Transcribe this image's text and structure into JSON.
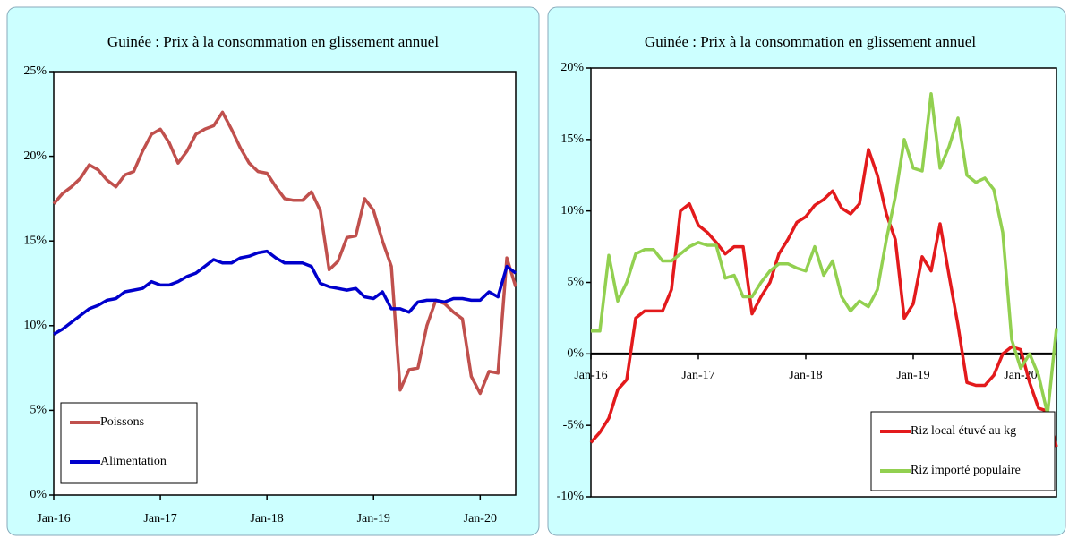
{
  "chart_data": [
    {
      "type": "line",
      "title": "Guinée : Prix à la consommation en glissement annuel",
      "categories": [
        "Jan-16",
        null,
        null,
        null,
        null,
        null,
        null,
        null,
        null,
        null,
        null,
        null,
        "Jan-17",
        null,
        null,
        null,
        null,
        null,
        null,
        null,
        null,
        null,
        null,
        null,
        "Jan-18",
        null,
        null,
        null,
        null,
        null,
        null,
        null,
        null,
        null,
        null,
        null,
        "Jan-19",
        null,
        null,
        null,
        null,
        null,
        null,
        null,
        null,
        null,
        null,
        null,
        "Jan-20",
        null,
        null,
        null,
        null
      ],
      "ylim": [
        0,
        25
      ],
      "yticks": [
        {
          "value": 0,
          "label": "0%"
        },
        {
          "value": 5,
          "label": "5%"
        },
        {
          "value": 10,
          "label": "10%"
        },
        {
          "value": 15,
          "label": "15%"
        },
        {
          "value": 20,
          "label": "20%"
        },
        {
          "value": 25,
          "label": "25%"
        }
      ],
      "legend": "lower left",
      "series": [
        {
          "name": "Poissons",
          "color": "#c0504d",
          "values": [
            17.2,
            17.8,
            18.2,
            18.7,
            19.5,
            19.2,
            18.6,
            18.2,
            18.9,
            19.1,
            20.3,
            21.3,
            21.6,
            20.8,
            19.6,
            20.3,
            21.3,
            21.6,
            21.8,
            22.6,
            21.6,
            20.5,
            19.6,
            19.1,
            19.0,
            18.2,
            17.5,
            17.4,
            17.4,
            17.9,
            16.8,
            13.3,
            13.8,
            15.2,
            15.3,
            17.5,
            16.8,
            15.0,
            13.5,
            6.2,
            7.4,
            7.5,
            10.0,
            11.5,
            11.3,
            10.8,
            10.4,
            7.0,
            6.0,
            7.3,
            7.2,
            14.0,
            12.3
          ]
        },
        {
          "name": "Alimentation",
          "color": "#0000cc",
          "values": [
            9.5,
            9.8,
            10.2,
            10.6,
            11.0,
            11.2,
            11.5,
            11.6,
            12.0,
            12.1,
            12.2,
            12.6,
            12.4,
            12.4,
            12.6,
            12.9,
            13.1,
            13.5,
            13.9,
            13.7,
            13.7,
            14.0,
            14.1,
            14.3,
            14.4,
            14.0,
            13.7,
            13.7,
            13.7,
            13.5,
            12.5,
            12.3,
            12.2,
            12.1,
            12.2,
            11.7,
            11.6,
            12.0,
            11.0,
            11.0,
            10.8,
            11.4,
            11.5,
            11.5,
            11.4,
            11.6,
            11.6,
            11.5,
            11.5,
            12.0,
            11.7,
            13.5,
            13.1
          ]
        }
      ]
    },
    {
      "type": "line",
      "title": "Guinée : Prix à la consommation en glissement annuel",
      "categories": [
        "Jan-16",
        null,
        null,
        null,
        null,
        null,
        null,
        null,
        null,
        null,
        null,
        null,
        "Jan-17",
        null,
        null,
        null,
        null,
        null,
        null,
        null,
        null,
        null,
        null,
        null,
        "Jan-18",
        null,
        null,
        null,
        null,
        null,
        null,
        null,
        null,
        null,
        null,
        null,
        "Jan-19",
        null,
        null,
        null,
        null,
        null,
        null,
        null,
        null,
        null,
        null,
        null,
        "Jan-20",
        null,
        null,
        null,
        null
      ],
      "ylim": [
        -10,
        20
      ],
      "yticks": [
        {
          "value": -10,
          "label": "-10%"
        },
        {
          "value": -5,
          "label": "-5%"
        },
        {
          "value": 0,
          "label": "0%"
        },
        {
          "value": 5,
          "label": "5%"
        },
        {
          "value": 10,
          "label": "10%"
        },
        {
          "value": 15,
          "label": "15%"
        },
        {
          "value": 20,
          "label": "20%"
        }
      ],
      "legend": "lower right",
      "series": [
        {
          "name": "Riz local étuvé au kg",
          "color": "#e31a1c",
          "values": [
            -6.2,
            -5.5,
            -4.5,
            -2.5,
            -1.8,
            2.5,
            3.0,
            3.0,
            3.0,
            4.5,
            10.0,
            10.5,
            9.0,
            8.5,
            7.8,
            7.0,
            7.5,
            7.5,
            2.8,
            4.0,
            5.0,
            7.0,
            8.0,
            9.2,
            9.6,
            10.4,
            10.8,
            11.4,
            10.2,
            9.8,
            10.5,
            14.3,
            12.5,
            9.8,
            8.0,
            2.5,
            3.5,
            6.8,
            5.8,
            9.1,
            5.5,
            2.0,
            -2.0,
            -2.2,
            -2.2,
            -1.5,
            0.0,
            0.5,
            0.3,
            -2.0,
            -3.8,
            -4.0,
            -6.5
          ]
        },
        {
          "name": "Riz importé populaire",
          "color": "#92d050",
          "values": [
            1.6,
            1.6,
            6.9,
            3.7,
            5.0,
            7.0,
            7.3,
            7.3,
            6.5,
            6.5,
            7.0,
            7.5,
            7.8,
            7.6,
            7.6,
            5.3,
            5.5,
            4.0,
            4.0,
            5.0,
            5.8,
            6.3,
            6.3,
            6.0,
            5.8,
            7.5,
            5.5,
            6.5,
            4.0,
            3.0,
            3.7,
            3.3,
            4.5,
            8.0,
            11.0,
            15.0,
            13.0,
            12.8,
            18.2,
            13.0,
            14.5,
            16.5,
            12.5,
            12.0,
            12.3,
            11.5,
            8.5,
            1.0,
            -1.0,
            0.0,
            -1.5,
            -4.2,
            1.8
          ]
        }
      ]
    }
  ]
}
